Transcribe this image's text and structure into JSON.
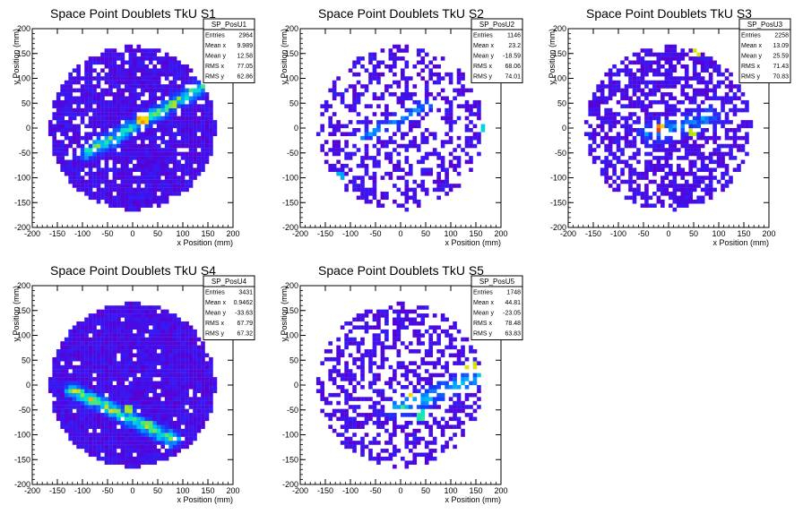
{
  "chart_data": [
    {
      "type": "heatmap",
      "title": "Space Point Doublets TkU S1",
      "xlabel": "x Position (mm)",
      "ylabel": "y Position (mm)",
      "xlim": [
        -200,
        200
      ],
      "ylim": [
        -200,
        200
      ],
      "x_ticks": [
        "-200",
        "-150",
        "-100",
        "-50",
        "0",
        "50",
        "100",
        "150",
        "200"
      ],
      "y_ticks": [
        "-200",
        "-150",
        "-100",
        "-50",
        "0",
        "50",
        "100",
        "150",
        "200"
      ],
      "stats": {
        "name": "SP_PosU1",
        "rows": [
          {
            "label": "Entries",
            "value": "2964"
          },
          {
            "label": "Mean x",
            "value": "9.989"
          },
          {
            "label": "Mean y",
            "value": "12.58"
          },
          {
            "label": "RMS x",
            "value": "77.05"
          },
          {
            "label": "RMS y",
            "value": "62.86"
          }
        ]
      },
      "distribution": {
        "radius": 165,
        "density": 0.88,
        "band": {
          "x0": -90,
          "y0": -50,
          "x1": 150,
          "y1": 90,
          "width": 22,
          "peak": 0.75
        },
        "hot": [
          [
            20,
            15,
            0.95
          ],
          [
            80,
            50,
            0.8
          ]
        ]
      }
    },
    {
      "type": "heatmap",
      "title": "Space Point Doublets TkU S2",
      "xlabel": "x Position (mm)",
      "ylabel": "y Position (mm)",
      "xlim": [
        -200,
        200
      ],
      "ylim": [
        -200,
        200
      ],
      "x_ticks": [
        "-200",
        "-150",
        "-100",
        "-50",
        "0",
        "50",
        "100",
        "150",
        "200"
      ],
      "y_ticks": [
        "-200",
        "-150",
        "-100",
        "-50",
        "0",
        "50",
        "100",
        "150",
        "200"
      ],
      "stats": {
        "name": "SP_PosU2",
        "rows": [
          {
            "label": "Entries",
            "value": "1146"
          },
          {
            "label": "Mean x",
            "value": "23.2"
          },
          {
            "label": "Mean y",
            "value": "-18.59"
          },
          {
            "label": "RMS x",
            "value": "68.06"
          },
          {
            "label": "RMS y",
            "value": "74.01"
          }
        ]
      },
      "distribution": {
        "radius": 165,
        "density": 0.42,
        "band": {
          "x0": -80,
          "y0": -20,
          "x1": 50,
          "y1": 45,
          "width": 18,
          "peak": 0.45
        },
        "hot": [
          [
            160,
            0,
            0.6
          ],
          [
            -120,
            -100,
            0.5
          ]
        ]
      }
    },
    {
      "type": "heatmap",
      "title": "Space Point Doublets TkU S3",
      "xlabel": "x Position (mm)",
      "ylabel": "y Position (mm)",
      "xlim": [
        -200,
        200
      ],
      "ylim": [
        -200,
        200
      ],
      "x_ticks": [
        "-200",
        "-150",
        "-100",
        "-50",
        "0",
        "50",
        "100",
        "150",
        "200"
      ],
      "y_ticks": [
        "-200",
        "-150",
        "-100",
        "-50",
        "0",
        "50",
        "100",
        "150",
        "200"
      ],
      "stats": {
        "name": "SP_PosU3",
        "rows": [
          {
            "label": "Entries",
            "value": "2258"
          },
          {
            "label": "Mean x",
            "value": "13.09"
          },
          {
            "label": "Mean y",
            "value": "25.59"
          },
          {
            "label": "RMS x",
            "value": "71.43"
          },
          {
            "label": "RMS y",
            "value": "70.83"
          }
        ]
      },
      "distribution": {
        "radius": 165,
        "density": 0.65,
        "band": {
          "x0": -40,
          "y0": -10,
          "x1": 80,
          "y1": 20,
          "width": 30,
          "peak": 0.4
        },
        "hot": [
          [
            -20,
            0,
            1.0
          ],
          [
            50,
            -10,
            0.9
          ],
          [
            55,
            150,
            0.9
          ]
        ]
      }
    },
    {
      "type": "heatmap",
      "title": "Space Point Doublets TkU S4",
      "xlabel": "x Position (mm)",
      "ylabel": "y Position (mm)",
      "xlim": [
        -200,
        200
      ],
      "ylim": [
        -200,
        200
      ],
      "x_ticks": [
        "-200",
        "-150",
        "-100",
        "-50",
        "0",
        "50",
        "100",
        "150",
        "200"
      ],
      "y_ticks": [
        "-200",
        "-150",
        "-100",
        "-50",
        "0",
        "50",
        "100",
        "150",
        "200"
      ],
      "stats": {
        "name": "SP_PosU4",
        "rows": [
          {
            "label": "Entries",
            "value": "3431"
          },
          {
            "label": "Mean x",
            "value": "0.9462"
          },
          {
            "label": "Mean y",
            "value": "-33.63"
          },
          {
            "label": "RMS x",
            "value": "67.79"
          },
          {
            "label": "RMS y",
            "value": "67.32"
          }
        ]
      },
      "distribution": {
        "radius": 165,
        "density": 0.97,
        "band": {
          "x0": -120,
          "y0": -10,
          "x1": 80,
          "y1": -110,
          "width": 22,
          "peak": 0.85
        },
        "hot": [
          [
            -10,
            -50,
            0.8
          ],
          [
            30,
            -80,
            0.8
          ]
        ]
      }
    },
    {
      "type": "heatmap",
      "title": "Space Point Doublets TkU S5",
      "xlabel": "x Position (mm)",
      "ylabel": "y Position (mm)",
      "xlim": [
        -200,
        200
      ],
      "ylim": [
        -200,
        200
      ],
      "x_ticks": [
        "-200",
        "-150",
        "-100",
        "-50",
        "0",
        "50",
        "100",
        "150",
        "200"
      ],
      "y_ticks": [
        "-200",
        "-150",
        "-100",
        "-50",
        "0",
        "50",
        "100",
        "150",
        "200"
      ],
      "stats": {
        "name": "SP_PosU5",
        "rows": [
          {
            "label": "Entries",
            "value": "1748"
          },
          {
            "label": "Mean x",
            "value": "44.81"
          },
          {
            "label": "Mean y",
            "value": "-23.05"
          },
          {
            "label": "RMS x",
            "value": "78.48"
          },
          {
            "label": "RMS y",
            "value": "63.83"
          }
        ]
      },
      "distribution": {
        "radius": 165,
        "density": 0.5,
        "band": {
          "x0": -10,
          "y0": -50,
          "x1": 160,
          "y1": 20,
          "width": 25,
          "peak": 0.6
        },
        "hot": [
          [
            15,
            -15,
            1.0
          ],
          [
            140,
            40,
            0.9
          ],
          [
            40,
            -60,
            0.7
          ]
        ]
      }
    }
  ]
}
